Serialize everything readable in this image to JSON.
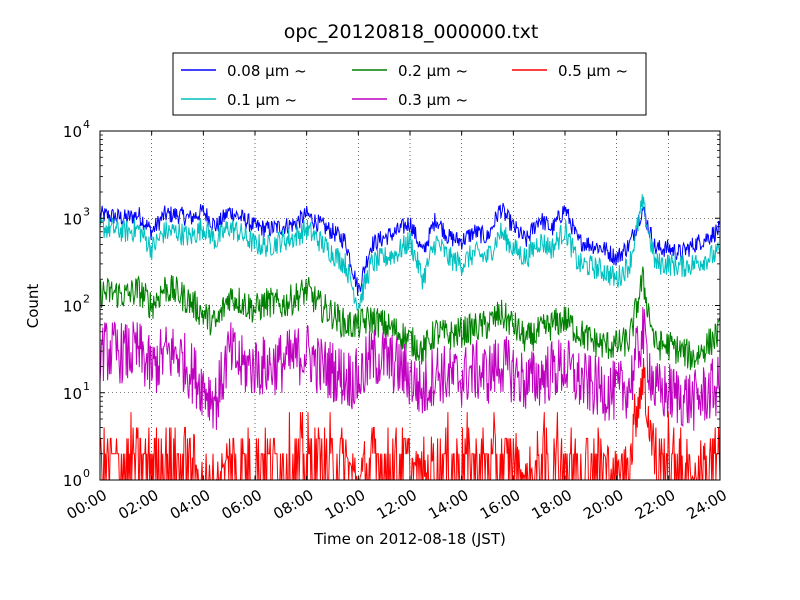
{
  "chart_data": {
    "type": "line",
    "title": "opc_20120818_000000.txt",
    "xlabel": "Time on 2012-08-18 (JST)",
    "ylabel": "Count",
    "yscale": "log",
    "ylim": [
      1,
      10000
    ],
    "xlim": [
      "00:00",
      "24:00"
    ],
    "x_ticks": [
      "00:00",
      "02:00",
      "04:00",
      "06:00",
      "08:00",
      "10:00",
      "12:00",
      "14:00",
      "16:00",
      "18:00",
      "20:00",
      "22:00",
      "24:00"
    ],
    "y_ticks": [
      {
        "base": "10",
        "exp": "0",
        "value": 1
      },
      {
        "base": "10",
        "exp": "1",
        "value": 10
      },
      {
        "base": "10",
        "exp": "2",
        "value": 100
      },
      {
        "base": "10",
        "exp": "3",
        "value": 1000
      },
      {
        "base": "10",
        "exp": "4",
        "value": 10000
      }
    ],
    "grid": true,
    "legend_placement": "top-center",
    "x_hours": [
      0,
      0.5,
      1,
      1.5,
      2,
      2.5,
      3,
      3.5,
      4,
      4.5,
      5,
      5.5,
      6,
      6.5,
      7,
      7.5,
      8,
      8.5,
      9,
      9.5,
      10,
      10.5,
      11,
      11.5,
      12,
      12.5,
      13,
      13.5,
      14,
      14.5,
      15,
      15.5,
      16,
      16.5,
      17,
      17.5,
      18,
      18.5,
      19,
      19.5,
      20,
      20.5,
      21,
      21.5,
      22,
      22.5,
      23,
      23.5,
      24
    ],
    "series": [
      {
        "name": "0.08 μm ~",
        "color": "#0000ff",
        "values": [
          1100,
          1050,
          1000,
          1100,
          700,
          1100,
          1100,
          1000,
          1200,
          800,
          1200,
          1000,
          800,
          750,
          800,
          850,
          1100,
          850,
          700,
          550,
          150,
          500,
          600,
          700,
          900,
          400,
          1000,
          600,
          550,
          700,
          600,
          1300,
          800,
          550,
          1000,
          750,
          1300,
          550,
          500,
          450,
          350,
          500,
          1300,
          450,
          450,
          400,
          500,
          600,
          750
        ]
      },
      {
        "name": "0.1 μm ~",
        "color": "#00c0c0",
        "values": [
          800,
          750,
          700,
          750,
          450,
          700,
          700,
          600,
          800,
          550,
          800,
          650,
          500,
          480,
          550,
          600,
          750,
          550,
          400,
          300,
          100,
          300,
          350,
          400,
          550,
          200,
          550,
          350,
          300,
          400,
          350,
          700,
          450,
          350,
          550,
          450,
          750,
          300,
          280,
          250,
          200,
          300,
          1500,
          300,
          300,
          280,
          300,
          350,
          400
        ]
      },
      {
        "name": "0.2 μm ~",
        "color": "#008000",
        "values": [
          140,
          140,
          130,
          150,
          100,
          160,
          140,
          110,
          80,
          60,
          130,
          110,
          90,
          110,
          100,
          120,
          150,
          100,
          80,
          60,
          60,
          70,
          60,
          50,
          40,
          30,
          50,
          45,
          50,
          55,
          60,
          80,
          60,
          40,
          50,
          60,
          70,
          50,
          40,
          35,
          35,
          40,
          200,
          35,
          35,
          30,
          25,
          35,
          50
        ]
      },
      {
        "name": "0.3 μm ~",
        "color": "#c000c0",
        "values": [
          30,
          30,
          28,
          30,
          18,
          28,
          28,
          18,
          12,
          8,
          30,
          20,
          20,
          20,
          22,
          25,
          30,
          20,
          18,
          15,
          14,
          25,
          25,
          20,
          15,
          10,
          18,
          15,
          15,
          18,
          16,
          22,
          17,
          13,
          15,
          18,
          20,
          14,
          12,
          11,
          10,
          12,
          50,
          10,
          10,
          9,
          8,
          10,
          12
        ]
      },
      {
        "name": "0.5 μm ~",
        "color": "#ff0000",
        "values": [
          2,
          2,
          2,
          2,
          2,
          2,
          2,
          2,
          1,
          1,
          2,
          2,
          2,
          2,
          2,
          2,
          2,
          2,
          2,
          2,
          1,
          2,
          2,
          2,
          2,
          1,
          2,
          2,
          2,
          2,
          2,
          2,
          2,
          1,
          2,
          2,
          2,
          2,
          2,
          2,
          1,
          2,
          20,
          2,
          2,
          2,
          1,
          2,
          2
        ]
      }
    ]
  }
}
